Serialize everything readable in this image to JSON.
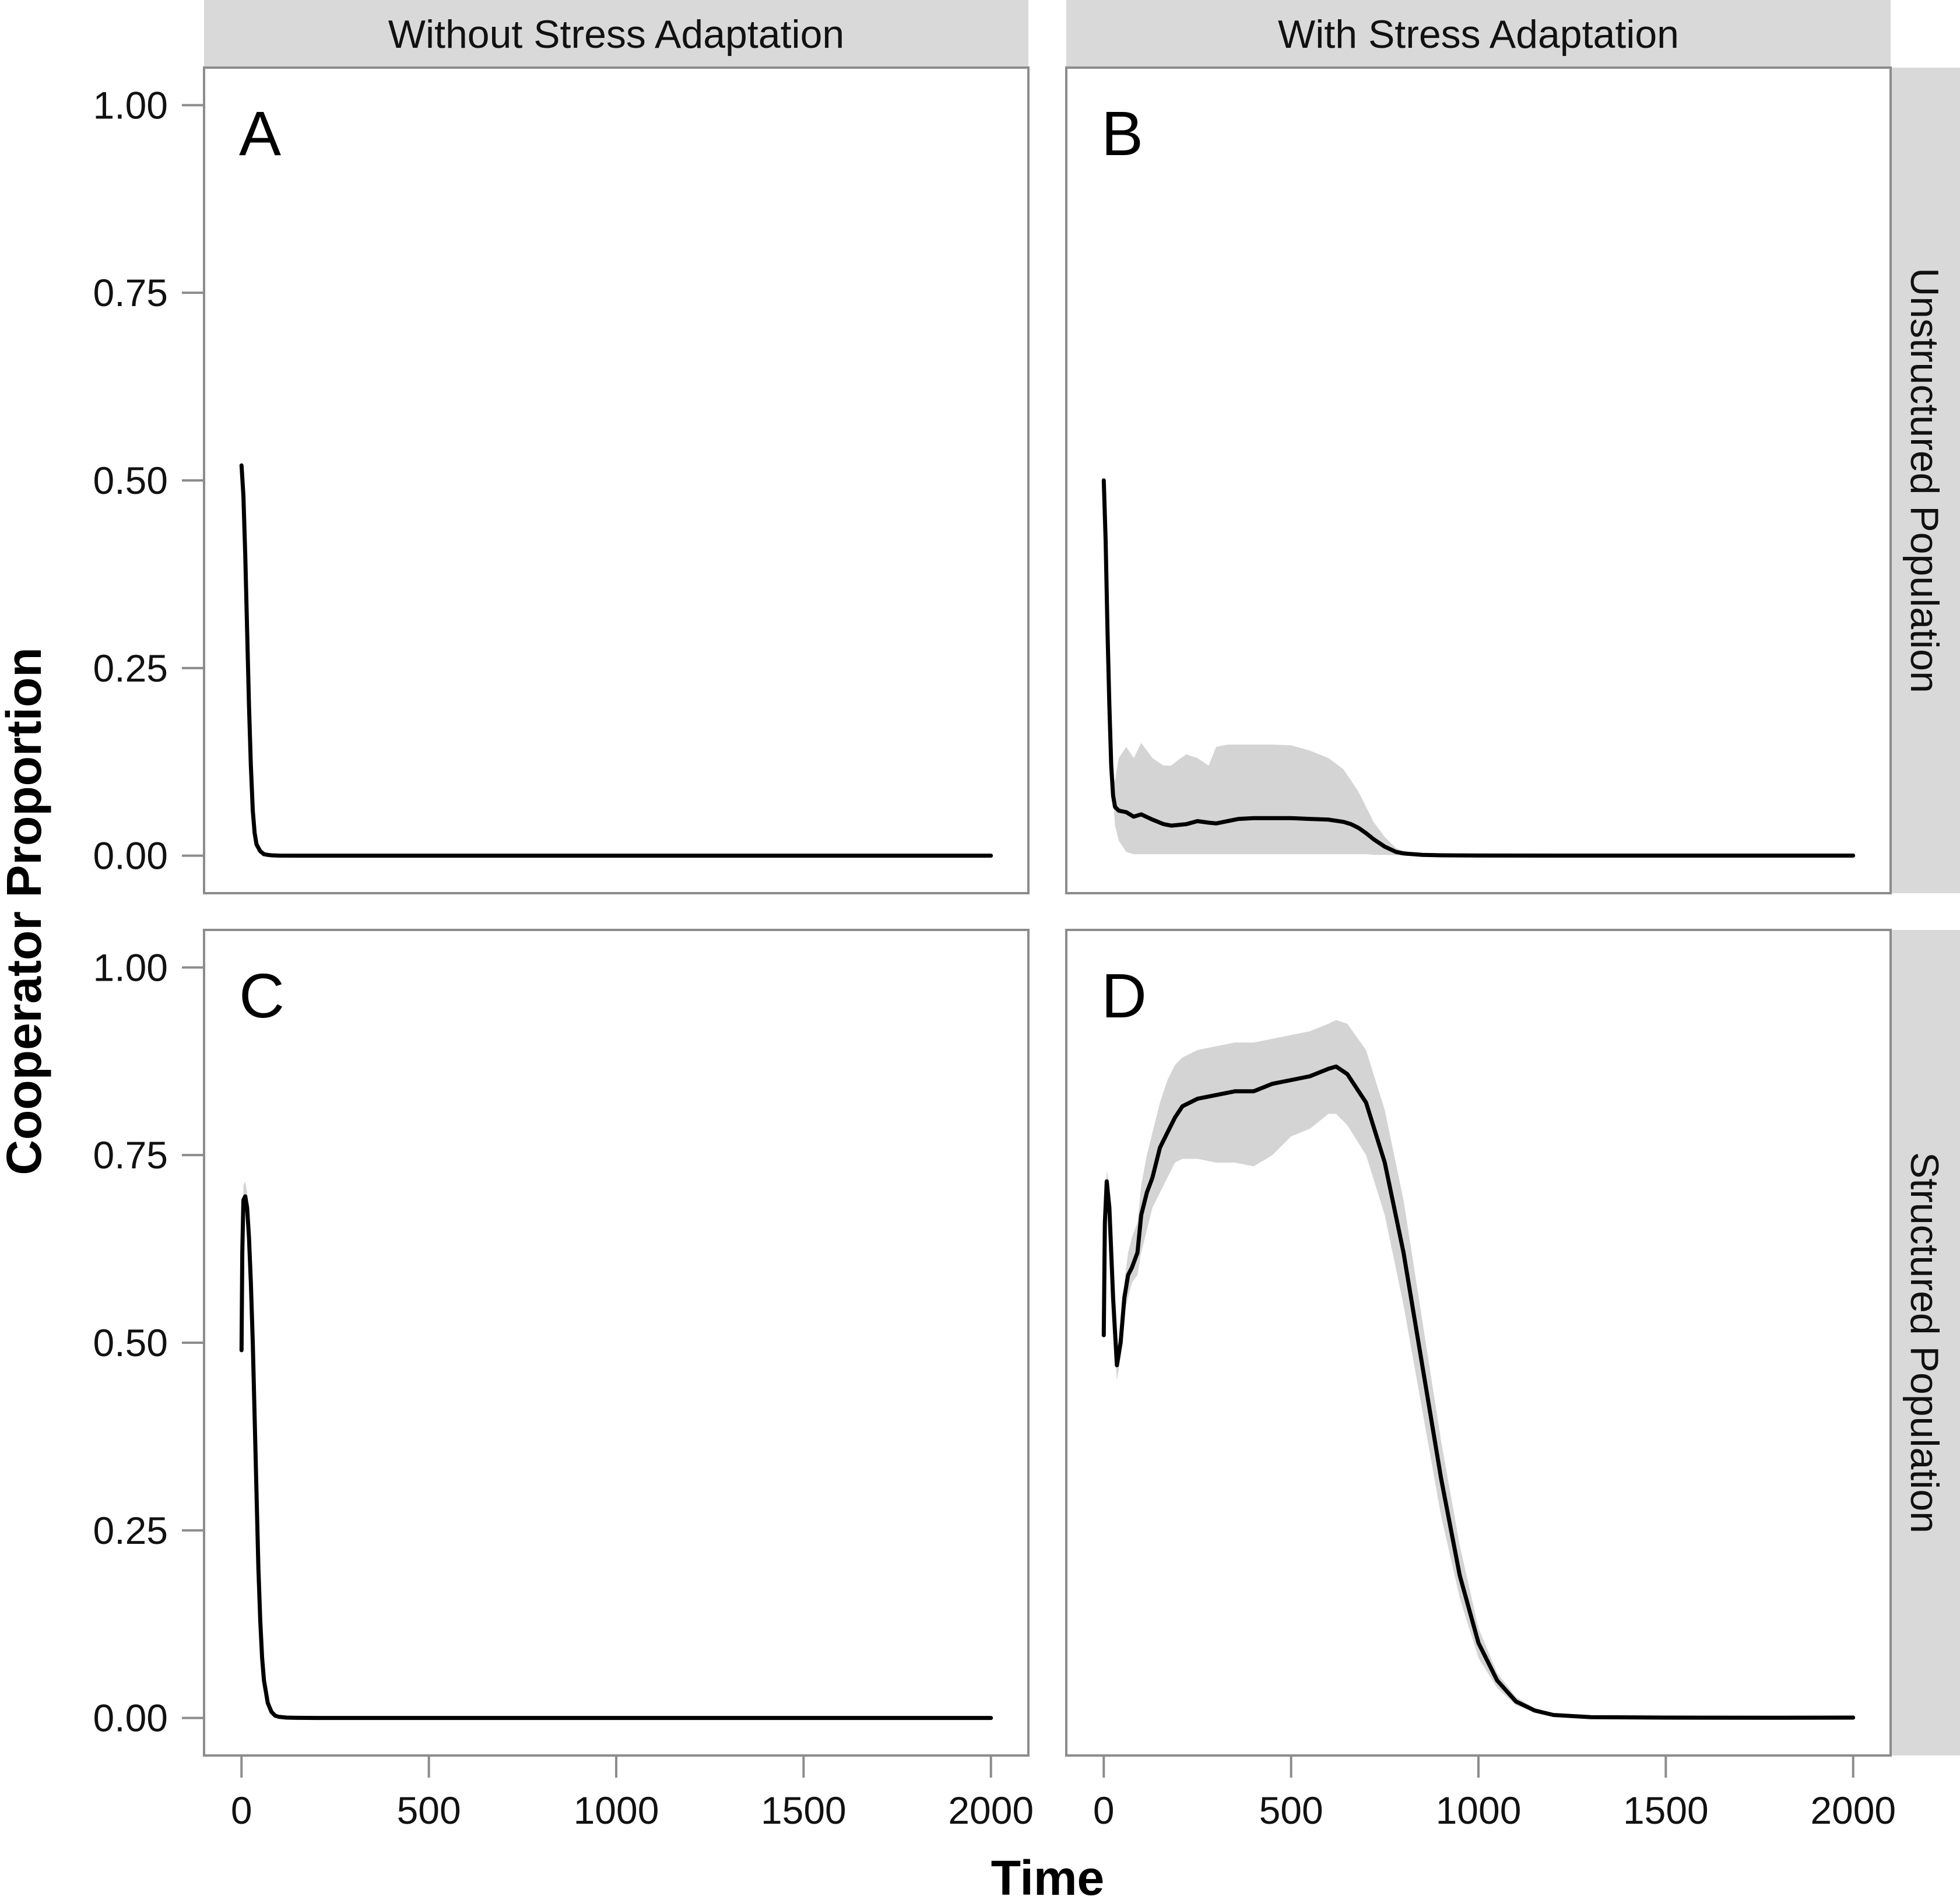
{
  "chart_data": {
    "type": "line",
    "xlabel": "Time",
    "ylabel": "Cooperator Proportion",
    "xlim": [
      -100,
      2100
    ],
    "ylim": [
      -0.05,
      1.05
    ],
    "x_ticks": [
      "0",
      "500",
      "1000",
      "1500",
      "2000"
    ],
    "x_tick_values": [
      0,
      500,
      1000,
      1500,
      2000
    ],
    "y_ticks": [
      "0.00",
      "0.25",
      "0.50",
      "0.75",
      "1.00"
    ],
    "y_tick_values": [
      0,
      0.25,
      0.5,
      0.75,
      1.0
    ],
    "grid": false,
    "column_facets": [
      "Without Stress Adaptation",
      "With Stress Adaptation"
    ],
    "row_facets": [
      "Unstructured Population",
      "Structured Population"
    ],
    "ribbon_color": "#d4d4d4",
    "line_color": "#000000",
    "panels": [
      {
        "letter": "A",
        "column": "Without Stress Adaptation",
        "row": "Unstructured Population",
        "x": [
          0,
          5,
          10,
          15,
          20,
          25,
          30,
          35,
          40,
          50,
          60,
          70,
          80,
          100,
          150,
          300,
          500,
          1000,
          1500,
          2000
        ],
        "y": [
          0.52,
          0.48,
          0.4,
          0.3,
          0.2,
          0.12,
          0.06,
          0.03,
          0.015,
          0.006,
          0.002,
          0.001,
          0.0005,
          0.0001,
          0,
          0,
          0,
          0,
          0,
          0
        ],
        "lower": [],
        "upper": []
      },
      {
        "letter": "B",
        "column": "With Stress Adaptation",
        "row": "Unstructured Population",
        "x": [
          0,
          5,
          10,
          15,
          20,
          25,
          30,
          40,
          60,
          80,
          100,
          130,
          160,
          180,
          200,
          220,
          250,
          280,
          300,
          330,
          360,
          400,
          450,
          500,
          550,
          600,
          640,
          660,
          680,
          700,
          720,
          750,
          780,
          800,
          850,
          900,
          1000,
          1200,
          1500,
          1800,
          2000
        ],
        "y": [
          0.5,
          0.42,
          0.3,
          0.2,
          0.12,
          0.08,
          0.065,
          0.06,
          0.058,
          0.052,
          0.055,
          0.048,
          0.042,
          0.04,
          0.041,
          0.042,
          0.046,
          0.044,
          0.043,
          0.046,
          0.049,
          0.05,
          0.05,
          0.05,
          0.049,
          0.048,
          0.045,
          0.042,
          0.037,
          0.03,
          0.022,
          0.012,
          0.005,
          0.003,
          0.001,
          0.0005,
          0.0002,
          0.0001,
          0.0001,
          0.0001,
          0.0001
        ],
        "lower": [
          0.5,
          0.42,
          0.3,
          0.2,
          0.12,
          0.08,
          0.04,
          0.02,
          0.005,
          0.002,
          0.002,
          0.002,
          0.002,
          0.002,
          0.002,
          0.002,
          0.002,
          0.002,
          0.002,
          0.002,
          0.002,
          0.002,
          0.002,
          0.002,
          0.002,
          0.002,
          0.002,
          0.002,
          0.002,
          0.002,
          0.001,
          0.001,
          0.0005,
          0.0005,
          0.0003,
          0.0002,
          0.0001,
          0.0001,
          0.0001,
          0.0001,
          0.0001
        ],
        "upper": [
          0.5,
          0.42,
          0.3,
          0.2,
          0.12,
          0.1,
          0.1,
          0.13,
          0.145,
          0.13,
          0.15,
          0.13,
          0.12,
          0.12,
          0.128,
          0.135,
          0.13,
          0.12,
          0.145,
          0.148,
          0.148,
          0.148,
          0.148,
          0.147,
          0.14,
          0.13,
          0.115,
          0.1,
          0.085,
          0.065,
          0.045,
          0.025,
          0.01,
          0.006,
          0.002,
          0.001,
          0.0004,
          0.0002,
          0.0002,
          0.0002,
          0.0002
        ]
      },
      {
        "letter": "C",
        "column": "Without Stress Adaptation",
        "row": "Structured Population",
        "x": [
          0,
          2,
          5,
          10,
          15,
          20,
          25,
          30,
          35,
          40,
          45,
          50,
          55,
          60,
          70,
          80,
          90,
          100,
          120,
          150,
          200,
          500,
          1000,
          1500,
          2000
        ],
        "y": [
          0.49,
          0.62,
          0.69,
          0.695,
          0.68,
          0.64,
          0.58,
          0.5,
          0.4,
          0.3,
          0.2,
          0.13,
          0.08,
          0.05,
          0.02,
          0.008,
          0.003,
          0.0015,
          0.0005,
          0.0002,
          0,
          0,
          0,
          0,
          0
        ],
        "lower": [
          0.49,
          0.61,
          0.67,
          0.675,
          0.66,
          0.62,
          0.56,
          0.48,
          0.38,
          0.285,
          0.19,
          0.12,
          0.075,
          0.045,
          0.018,
          0.007,
          0.002,
          0.001,
          0.0003,
          0.0001,
          0,
          0,
          0,
          0,
          0
        ],
        "upper": [
          0.49,
          0.63,
          0.71,
          0.715,
          0.7,
          0.66,
          0.6,
          0.52,
          0.42,
          0.315,
          0.21,
          0.14,
          0.085,
          0.055,
          0.022,
          0.009,
          0.004,
          0.002,
          0.0007,
          0.0003,
          0,
          0,
          0,
          0,
          0
        ]
      },
      {
        "letter": "D",
        "column": "With Stress Adaptation",
        "row": "Structured Population",
        "x": [
          0,
          3,
          8,
          15,
          25,
          35,
          45,
          55,
          65,
          75,
          90,
          100,
          115,
          130,
          150,
          170,
          190,
          210,
          250,
          300,
          350,
          400,
          450,
          500,
          550,
          600,
          620,
          650,
          700,
          750,
          800,
          850,
          900,
          950,
          1000,
          1050,
          1100,
          1150,
          1200,
          1300,
          1500,
          1800,
          2000
        ],
        "y": [
          0.51,
          0.66,
          0.715,
          0.68,
          0.56,
          0.47,
          0.5,
          0.56,
          0.59,
          0.6,
          0.62,
          0.67,
          0.7,
          0.72,
          0.76,
          0.78,
          0.8,
          0.815,
          0.825,
          0.83,
          0.835,
          0.835,
          0.845,
          0.85,
          0.855,
          0.865,
          0.868,
          0.858,
          0.82,
          0.74,
          0.62,
          0.47,
          0.32,
          0.19,
          0.1,
          0.05,
          0.022,
          0.01,
          0.004,
          0.001,
          0.0005,
          0.0003,
          0.0005
        ],
        "lower": [
          0.51,
          0.65,
          0.7,
          0.65,
          0.53,
          0.45,
          0.48,
          0.54,
          0.56,
          0.58,
          0.59,
          0.62,
          0.65,
          0.68,
          0.7,
          0.72,
          0.74,
          0.745,
          0.745,
          0.74,
          0.74,
          0.735,
          0.75,
          0.775,
          0.785,
          0.805,
          0.805,
          0.79,
          0.75,
          0.67,
          0.55,
          0.41,
          0.27,
          0.16,
          0.08,
          0.04,
          0.017,
          0.008,
          0.003,
          0.0008,
          0.0004,
          0.0002,
          0.0004
        ],
        "upper": [
          0.51,
          0.67,
          0.73,
          0.71,
          0.59,
          0.49,
          0.52,
          0.58,
          0.62,
          0.64,
          0.66,
          0.71,
          0.75,
          0.78,
          0.82,
          0.85,
          0.87,
          0.88,
          0.89,
          0.895,
          0.9,
          0.9,
          0.905,
          0.91,
          0.915,
          0.925,
          0.93,
          0.925,
          0.89,
          0.81,
          0.69,
          0.53,
          0.37,
          0.23,
          0.12,
          0.06,
          0.028,
          0.013,
          0.005,
          0.0015,
          0.0006,
          0.0004,
          0.0006
        ]
      }
    ]
  }
}
